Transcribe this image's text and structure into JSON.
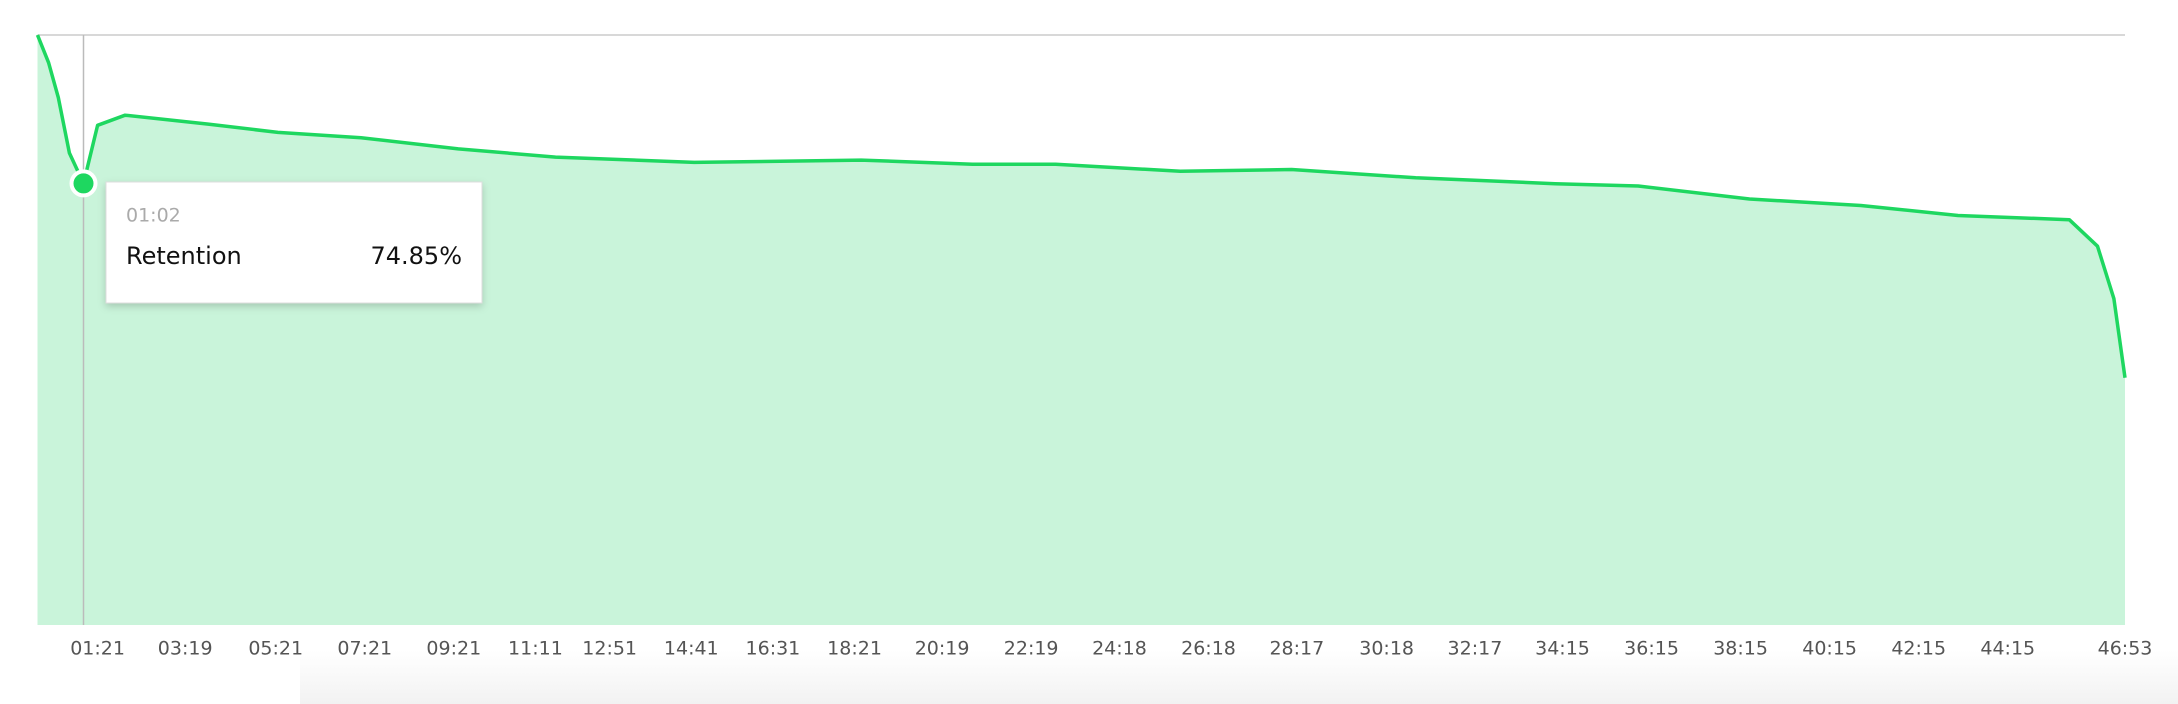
{
  "chart_data": {
    "type": "area",
    "series": [
      {
        "name": "Retention",
        "color": "#1ed760",
        "fill": "#c9f4da",
        "x": [
          0,
          15,
          28,
          43,
          62,
          81,
          118,
          230,
          324,
          436,
          567,
          698,
          885,
          1110,
          1260,
          1372,
          1540,
          1690,
          1857,
          2045,
          2157,
          2307,
          2457,
          2588,
          2738,
          2776,
          2798,
          2813
        ],
        "values": [
          100,
          95.3,
          89.4,
          80,
          74.85,
          84.7,
          86.4,
          84.9,
          83.5,
          82.6,
          80.7,
          79.3,
          78.4,
          78.8,
          78.1,
          78.1,
          76.9,
          77.2,
          75.8,
          74.8,
          74.4,
          72.2,
          71.1,
          69.4,
          68.7,
          64.2,
          55.3,
          41.9
        ]
      }
    ],
    "xlim": [
      0,
      2813
    ],
    "ylim": [
      0,
      100
    ],
    "xticks": [
      {
        "value": 81,
        "label": "01:21"
      },
      {
        "value": 199,
        "label": "03:19"
      },
      {
        "value": 321,
        "label": "05:21"
      },
      {
        "value": 441,
        "label": "07:21"
      },
      {
        "value": 561,
        "label": "09:21"
      },
      {
        "value": 671,
        "label": "11:11"
      },
      {
        "value": 771,
        "label": "12:51"
      },
      {
        "value": 881,
        "label": "14:41"
      },
      {
        "value": 991,
        "label": "16:31"
      },
      {
        "value": 1101,
        "label": "18:21"
      },
      {
        "value": 1219,
        "label": "20:19"
      },
      {
        "value": 1339,
        "label": "22:19"
      },
      {
        "value": 1458,
        "label": "24:18"
      },
      {
        "value": 1578,
        "label": "26:18"
      },
      {
        "value": 1697,
        "label": "28:17"
      },
      {
        "value": 1818,
        "label": "30:18"
      },
      {
        "value": 1937,
        "label": "32:17"
      },
      {
        "value": 2055,
        "label": "34:15"
      },
      {
        "value": 2175,
        "label": "36:15"
      },
      {
        "value": 2295,
        "label": "38:15"
      },
      {
        "value": 2415,
        "label": "40:15"
      },
      {
        "value": 2535,
        "label": "42:15"
      },
      {
        "value": 2655,
        "label": "44:15"
      },
      {
        "value": 2813,
        "label": "46:53"
      }
    ],
    "tooltip": {
      "x": {
        "value": 62,
        "label": "01:02"
      },
      "value": 74.85,
      "value_label": "74.85%"
    }
  }
}
